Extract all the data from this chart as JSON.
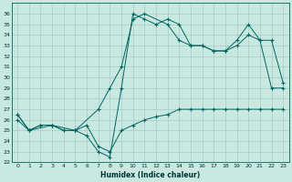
{
  "xlabel": "Humidex (Indice chaleur)",
  "ylabel": "",
  "xlim": [
    -0.5,
    23.5
  ],
  "ylim": [
    22,
    37
  ],
  "yticks": [
    22,
    23,
    24,
    25,
    26,
    27,
    28,
    29,
    30,
    31,
    32,
    33,
    34,
    35,
    36
  ],
  "xticks": [
    0,
    1,
    2,
    3,
    4,
    5,
    6,
    7,
    8,
    9,
    10,
    11,
    12,
    13,
    14,
    15,
    16,
    17,
    18,
    19,
    20,
    21,
    22,
    23
  ],
  "bg_color": "#c8e8e0",
  "grid_color": "#a8cccc",
  "line_color": "#006660",
  "line1_x": [
    0,
    1,
    2,
    3,
    4,
    5,
    6,
    7,
    8,
    9,
    10,
    11,
    12,
    13,
    14,
    15,
    16,
    17,
    18,
    19,
    20,
    21,
    22,
    23
  ],
  "line1_y": [
    26,
    25,
    25.5,
    25.5,
    25,
    25,
    25.5,
    23.5,
    23,
    25,
    25.5,
    26,
    26.3,
    26.5,
    27,
    27,
    27,
    27,
    27,
    27,
    27,
    27,
    27,
    27
  ],
  "line2_x": [
    0,
    1,
    2,
    3,
    4,
    5,
    6,
    7,
    8,
    9,
    10,
    11,
    12,
    13,
    14,
    15,
    16,
    17,
    18,
    19,
    20,
    21,
    22,
    23
  ],
  "line2_y": [
    26.5,
    25,
    25.5,
    25.5,
    25,
    25,
    24.5,
    23,
    22.5,
    29,
    36,
    35.5,
    35,
    35.5,
    35,
    33,
    33,
    32.5,
    32.5,
    33,
    34,
    33.5,
    29,
    29
  ],
  "line3_x": [
    0,
    1,
    3,
    5,
    7,
    8,
    9,
    10,
    11,
    13,
    14,
    15,
    16,
    17,
    18,
    19,
    20,
    21,
    22,
    23
  ],
  "line3_y": [
    26.5,
    25,
    25.5,
    25,
    27,
    29,
    31,
    35.5,
    36,
    35,
    33.5,
    33,
    33,
    32.5,
    32.5,
    33.5,
    35,
    33.5,
    33.5,
    29.5
  ]
}
